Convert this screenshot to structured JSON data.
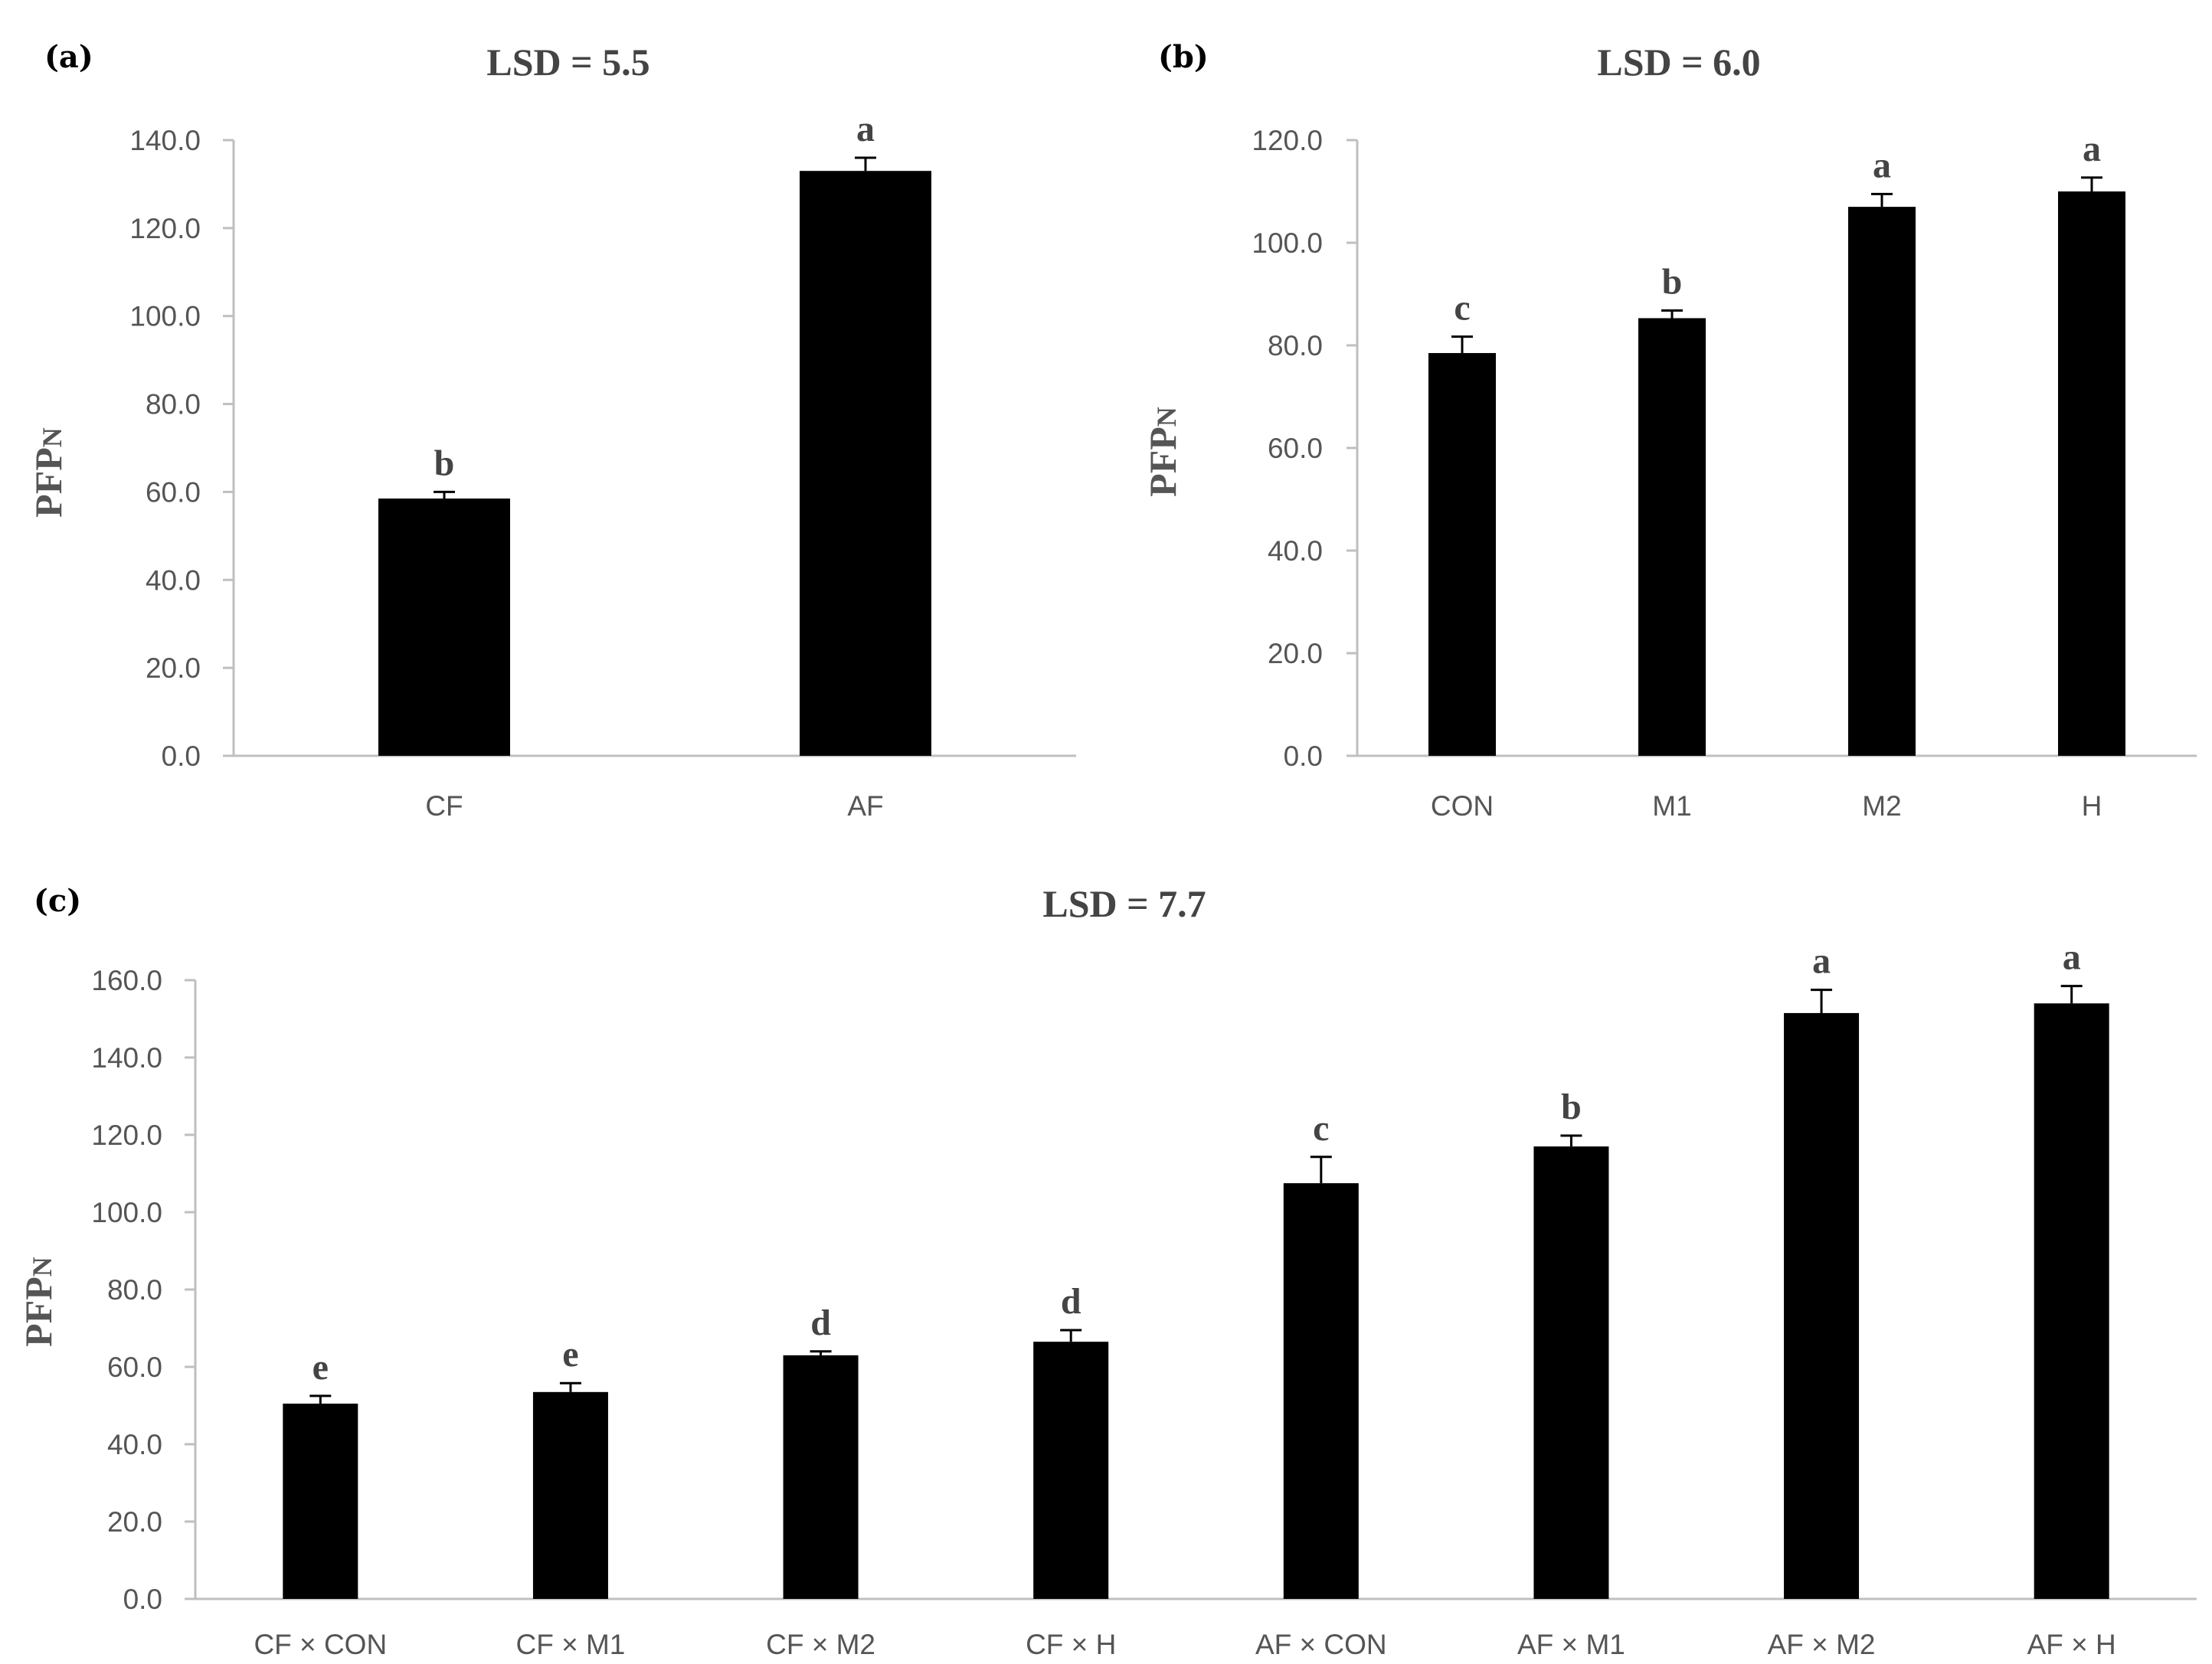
{
  "chart_data": [
    {
      "type": "bar",
      "panel": "(a)",
      "title": "LSD = 5.5",
      "ylabel": "PFP",
      "ylabel_sub": "N",
      "xlabel": "",
      "ylim": [
        0,
        140
      ],
      "ystep": 20,
      "tick_labels": [
        "0.0",
        "20.0",
        "40.0",
        "60.0",
        "80.0",
        "100.0",
        "120.0",
        "140.0"
      ],
      "categories": [
        "CF",
        "AF"
      ],
      "values": [
        58.5,
        133.0
      ],
      "errors": [
        1.5,
        3.0
      ],
      "letters": [
        "b",
        "a"
      ],
      "color": "#000000",
      "grid": false
    },
    {
      "type": "bar",
      "panel": "(b)",
      "title": "LSD = 6.0",
      "ylabel": "PFP",
      "ylabel_sub": "N",
      "xlabel": "",
      "ylim": [
        0,
        120
      ],
      "ystep": 20,
      "tick_labels": [
        "0.0",
        "20.0",
        "40.0",
        "60.0",
        "80.0",
        "100.0",
        "120.0"
      ],
      "categories": [
        "CON",
        "M1",
        "M2",
        "H"
      ],
      "values": [
        78.5,
        85.3,
        107.0,
        110.0
      ],
      "errors": [
        3.2,
        1.5,
        2.5,
        2.7
      ],
      "letters": [
        "c",
        "b",
        "a",
        "a"
      ],
      "color": "#000000",
      "grid": false
    },
    {
      "type": "bar",
      "panel": "(c)",
      "title": "LSD = 7.7",
      "ylabel": "PFP",
      "ylabel_sub": "N",
      "xlabel": "",
      "ylim": [
        0,
        160
      ],
      "ystep": 20,
      "tick_labels": [
        "0.0",
        "20.0",
        "40.0",
        "60.0",
        "80.0",
        "100.0",
        "120.0",
        "140.0",
        "160.0"
      ],
      "categories": [
        "CF × CON",
        "CF × M1",
        "CF × M2",
        "CF × H",
        "AF × CON",
        "AF × M1",
        "AF × M2",
        "AF × H"
      ],
      "values": [
        50.5,
        53.5,
        63.0,
        66.5,
        107.5,
        117.0,
        151.5,
        154.0
      ],
      "errors": [
        2.0,
        2.3,
        1.0,
        3.0,
        6.8,
        2.8,
        6.0,
        4.5
      ],
      "letters": [
        "e",
        "e",
        "d",
        "d",
        "c",
        "b",
        "a",
        "a"
      ],
      "color": "#000000",
      "grid": false
    }
  ]
}
